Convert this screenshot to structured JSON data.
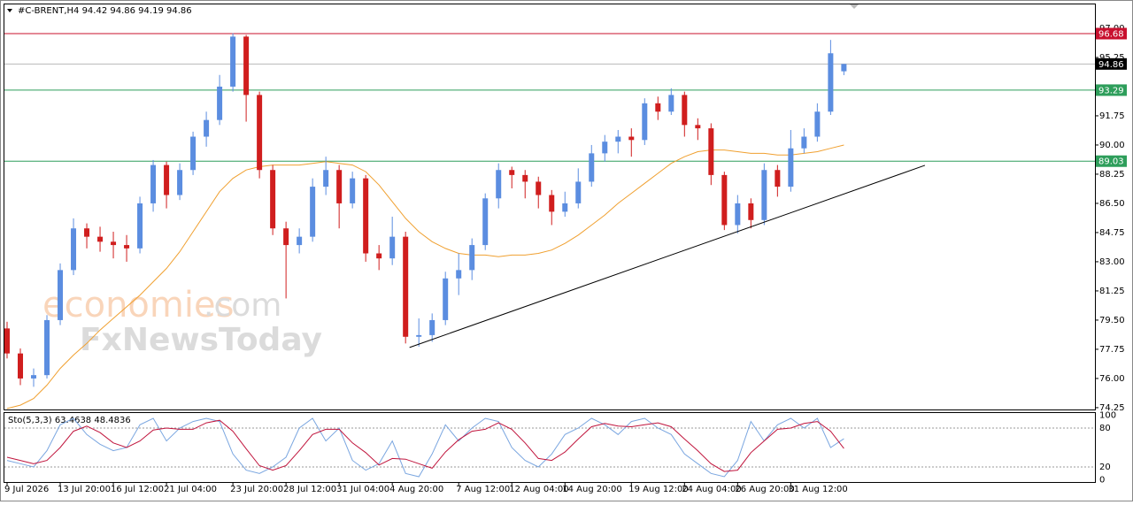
{
  "chart_data": [
    {
      "type": "candlestick",
      "title": "#C-BRENT,H4  94.42 94.86 94.19 94.86",
      "categories": [
        "9 Jul 2026",
        null,
        null,
        null,
        "13 Jul 20:00",
        null,
        null,
        null,
        "16 Jul 12:00",
        null,
        null,
        null,
        "21 Jul 04:00",
        null,
        null,
        null,
        null,
        "23 Jul 20:00",
        null,
        null,
        null,
        "28 Jul 12:00",
        null,
        null,
        null,
        "31 Jul 04:00",
        null,
        null,
        null,
        "4 Aug 20:00",
        null,
        null,
        null,
        null,
        "7 Aug 12:00",
        null,
        null,
        null,
        "12 Aug 04:00",
        null,
        null,
        null,
        "14 Aug 20:00",
        null,
        null,
        null,
        null,
        "19 Aug 12:00",
        null,
        null,
        null,
        "24 Aug 04:00",
        null,
        null,
        null,
        "26 Aug 20:00",
        null,
        null,
        null,
        "31 Aug 12:00",
        null,
        null,
        null,
        null
      ],
      "open": [
        79.0,
        77.5,
        76.0,
        76.2,
        79.5,
        82.5,
        85.0,
        84.5,
        84.2,
        84.0,
        83.8,
        86.5,
        88.8,
        87.0,
        88.5,
        90.5,
        91.5,
        93.5,
        96.5,
        93.0,
        88.5,
        85.0,
        84.0,
        84.5,
        87.5,
        88.5,
        86.5,
        88.0,
        83.5,
        83.2,
        84.5,
        78.5,
        78.6,
        79.5,
        82.0,
        82.5,
        84.0,
        86.8,
        88.5,
        88.2,
        87.8,
        87.0,
        86.0,
        86.5,
        87.8,
        89.5,
        90.2,
        90.5,
        90.3,
        92.5,
        92.0,
        93.0,
        91.2,
        91.0,
        88.2,
        85.2,
        86.5,
        85.5,
        88.5,
        87.5,
        89.8,
        90.5,
        92.0,
        94.42
      ],
      "high": [
        79.4,
        77.8,
        76.6,
        79.8,
        82.9,
        85.6,
        85.3,
        85.1,
        84.8,
        84.6,
        86.9,
        89.1,
        89.0,
        88.9,
        90.8,
        92.0,
        94.2,
        96.7,
        96.6,
        93.2,
        88.8,
        85.4,
        85.0,
        88.0,
        89.3,
        88.8,
        88.4,
        88.2,
        84.0,
        85.7,
        84.8,
        79.6,
        79.9,
        82.4,
        83.5,
        84.4,
        87.1,
        88.9,
        88.7,
        88.5,
        88.1,
        87.3,
        87.2,
        88.6,
        90.0,
        90.6,
        90.9,
        91.0,
        92.8,
        92.9,
        93.4,
        93.2,
        91.6,
        91.3,
        88.4,
        87.0,
        86.8,
        88.9,
        88.8,
        90.9,
        91.0,
        92.5,
        96.3,
        94.86
      ],
      "low": [
        77.2,
        75.6,
        75.5,
        76.0,
        79.2,
        82.2,
        83.8,
        83.6,
        83.2,
        83.0,
        83.5,
        86.0,
        86.2,
        86.7,
        88.2,
        89.9,
        91.2,
        93.2,
        91.4,
        88.0,
        84.6,
        80.8,
        83.5,
        84.2,
        87.0,
        85.0,
        86.2,
        83.0,
        82.5,
        82.8,
        78.1,
        77.9,
        78.2,
        79.2,
        81.0,
        81.9,
        83.7,
        86.2,
        87.4,
        86.8,
        86.2,
        85.2,
        85.7,
        86.2,
        87.5,
        89.0,
        89.5,
        89.3,
        90.0,
        91.5,
        91.8,
        90.5,
        90.3,
        87.6,
        84.9,
        84.7,
        85.0,
        85.2,
        86.9,
        87.2,
        89.5,
        90.2,
        91.8,
        94.19
      ],
      "close": [
        77.5,
        76.0,
        76.2,
        79.5,
        82.5,
        85.0,
        84.5,
        84.2,
        84.0,
        83.8,
        86.5,
        88.8,
        87.0,
        88.5,
        90.5,
        91.5,
        93.5,
        96.5,
        93.0,
        88.5,
        85.0,
        84.0,
        84.5,
        87.5,
        88.5,
        86.5,
        88.0,
        83.5,
        83.2,
        84.5,
        78.5,
        78.6,
        79.5,
        82.0,
        82.5,
        84.0,
        86.8,
        88.5,
        88.2,
        87.8,
        87.0,
        86.0,
        86.5,
        87.8,
        89.5,
        90.2,
        90.5,
        90.3,
        92.5,
        92.0,
        93.0,
        91.2,
        91.0,
        88.2,
        85.2,
        86.5,
        85.5,
        88.5,
        87.5,
        89.8,
        90.5,
        92.0,
        95.5,
        94.86
      ],
      "up_color": "#5b8de0",
      "down_color": "#d01e1e",
      "ma": {
        "color": "#f0a030",
        "values": [
          74.2,
          74.4,
          74.8,
          75.6,
          76.6,
          77.4,
          78.1,
          78.9,
          79.6,
          80.3,
          81.0,
          81.8,
          82.6,
          83.6,
          84.8,
          86.0,
          87.2,
          88.0,
          88.5,
          88.7,
          88.8,
          88.8,
          88.8,
          88.9,
          89.0,
          88.9,
          88.8,
          88.4,
          87.6,
          86.6,
          85.6,
          84.8,
          84.2,
          83.8,
          83.5,
          83.4,
          83.4,
          83.3,
          83.4,
          83.4,
          83.5,
          83.7,
          84.1,
          84.6,
          85.2,
          85.8,
          86.5,
          87.1,
          87.7,
          88.3,
          88.9,
          89.3,
          89.6,
          89.7,
          89.7,
          89.6,
          89.5,
          89.5,
          89.4,
          89.4,
          89.5,
          89.6,
          89.8,
          90.0
        ]
      },
      "hlines": [
        {
          "value": 96.68,
          "color": "#c8102e",
          "line_color": "#c8102e",
          "text_color": "#ffffff"
        },
        {
          "value": 94.86,
          "color": "#000000",
          "line_color": "#b8b8b8",
          "text_color": "#ffffff"
        },
        {
          "value": 93.29,
          "color": "#2e9e5b",
          "line_color": "#2e9e5b",
          "text_color": "#ffffff"
        },
        {
          "value": 89.03,
          "color": "#2e9e5b",
          "line_color": "#2e9e5b",
          "text_color": "#ffffff"
        }
      ],
      "trendline": {
        "x": [
          30.3,
          69.1
        ],
        "y": [
          77.86,
          88.78
        ],
        "color": "#000000"
      },
      "xlim": [
        -0.2,
        81.9
      ],
      "ylim": [
        74.14,
        98.43
      ],
      "yticks": [
        {
          "value": 97,
          "label": "97.00"
        },
        95.25,
        91.75,
        {
          "value": 90,
          "label": "90.00"
        },
        88.25,
        {
          "value": 86.5,
          "label": "86.50"
        },
        84.75,
        {
          "value": 83,
          "label": "83.00"
        },
        81.25,
        {
          "value": 79.5,
          "label": "79.50"
        },
        77.75,
        {
          "value": 76,
          "label": "76.00"
        },
        74.25
      ],
      "watermark": {
        "brand": "economies",
        "domain": ".com",
        "sub": "FxNewsToday"
      }
    },
    {
      "type": "line",
      "title": "Sto(5,3,3) 63.4638 48.4836",
      "xlim": [
        -0.2,
        81.9
      ],
      "ylim": [
        -3.2,
        104.5
      ],
      "yticks": [
        0,
        20,
        80,
        100
      ],
      "grid": "inner",
      "series": [
        {
          "color": "#7aa6e0",
          "values": [
            30,
            25,
            20,
            45,
            85,
            95,
            70,
            55,
            45,
            50,
            85,
            95,
            60,
            80,
            90,
            95,
            90,
            40,
            15,
            10,
            20,
            35,
            80,
            95,
            60,
            80,
            30,
            15,
            25,
            60,
            10,
            5,
            40,
            85,
            60,
            80,
            95,
            90,
            50,
            30,
            20,
            40,
            70,
            80,
            95,
            85,
            70,
            90,
            95,
            80,
            70,
            40,
            25,
            10,
            5,
            30,
            90,
            60,
            85,
            95,
            80,
            95,
            50,
            63.4638
          ]
        },
        {
          "color": "#c0143c",
          "values": [
            35,
            30,
            25,
            30,
            50,
            75,
            83,
            73,
            57,
            50,
            60,
            77,
            80,
            78,
            78,
            88,
            92,
            75,
            48,
            22,
            15,
            22,
            45,
            70,
            78,
            78,
            57,
            42,
            23,
            33,
            32,
            25,
            18,
            43,
            62,
            75,
            78,
            88,
            78,
            57,
            33,
            30,
            43,
            63,
            82,
            87,
            83,
            82,
            85,
            88,
            82,
            63,
            45,
            25,
            13,
            15,
            42,
            60,
            78,
            80,
            87,
            90,
            75,
            48.4836
          ]
        }
      ]
    }
  ]
}
